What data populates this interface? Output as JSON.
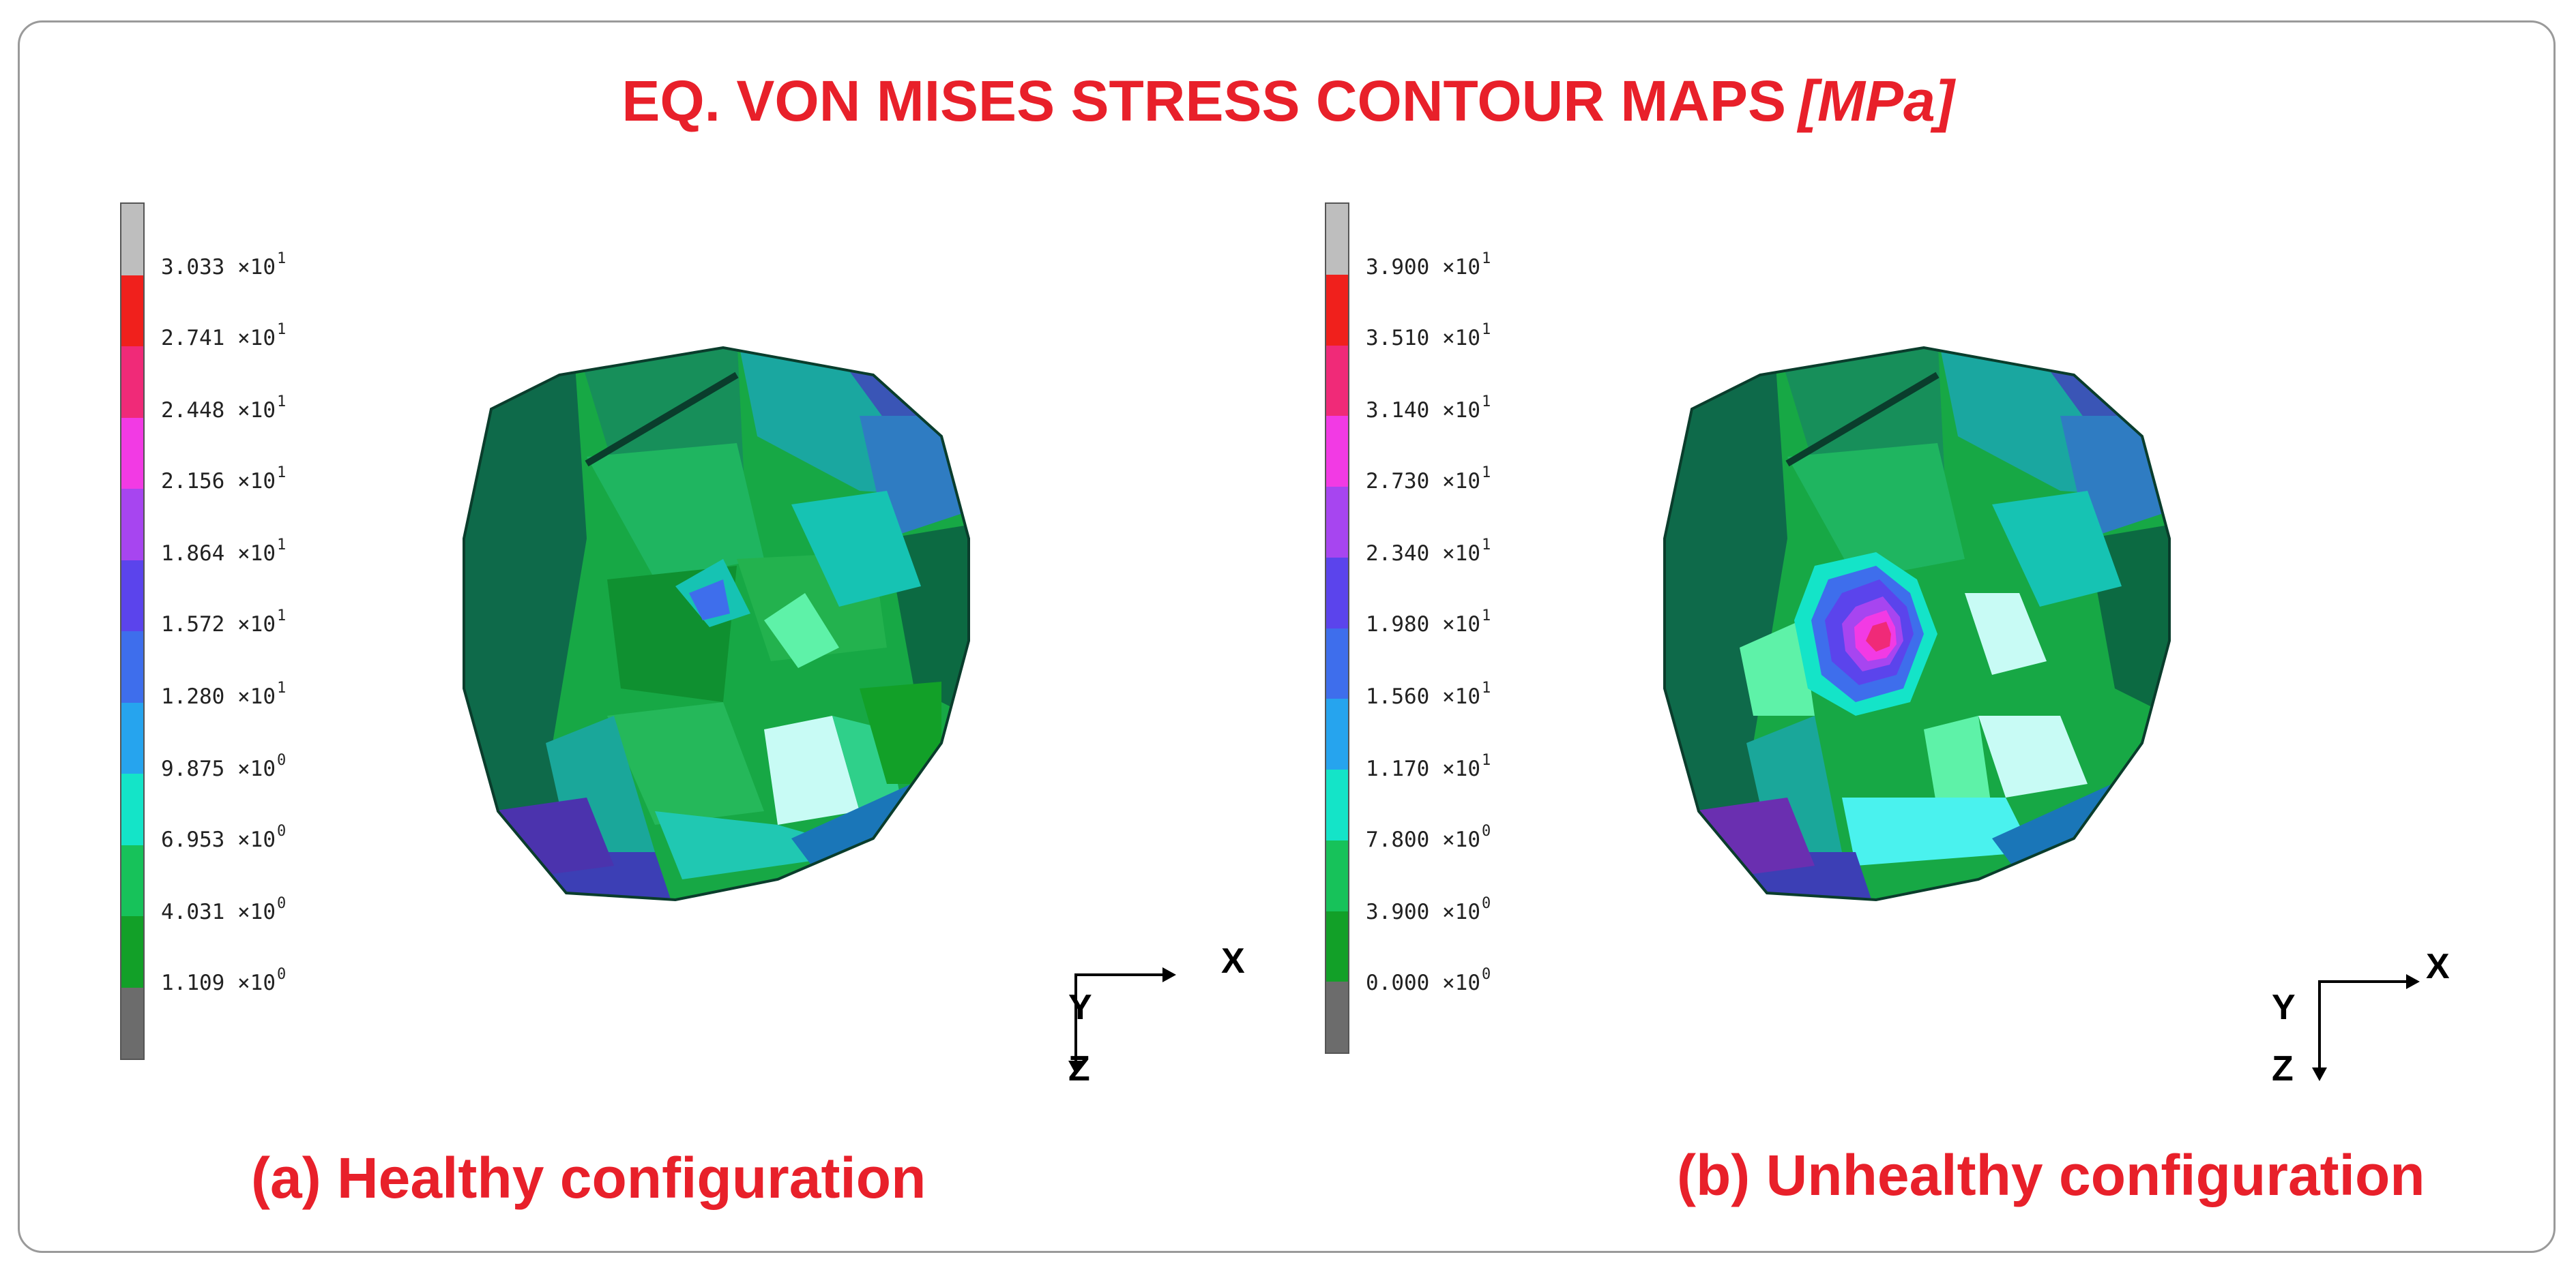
{
  "title": {
    "text": "EQ. VON MISES STRESS CONTOUR MAPS",
    "unit": "[MPa]"
  },
  "colors": {
    "accent_red": "#e8202a",
    "scale_segments": [
      "#bebebe",
      "#f0201c",
      "#f02a78",
      "#f23ae4",
      "#a745f0",
      "#5b44ec",
      "#3e6eec",
      "#26a4ee",
      "#14e4c8",
      "#17c25a",
      "#12a028",
      "#6c6c6c"
    ]
  },
  "panels": [
    {
      "caption": "(a) Healthy configuration",
      "scale_labels": [
        {
          "mantissa": "3.033",
          "exp": "1"
        },
        {
          "mantissa": "2.741",
          "exp": "1"
        },
        {
          "mantissa": "2.448",
          "exp": "1"
        },
        {
          "mantissa": "2.156",
          "exp": "1"
        },
        {
          "mantissa": "1.864",
          "exp": "1"
        },
        {
          "mantissa": "1.572",
          "exp": "1"
        },
        {
          "mantissa": "1.280",
          "exp": "1"
        },
        {
          "mantissa": "9.875",
          "exp": "0"
        },
        {
          "mantissa": "6.953",
          "exp": "0"
        },
        {
          "mantissa": "4.031",
          "exp": "0"
        },
        {
          "mantissa": "1.109",
          "exp": "0"
        }
      ],
      "axes": {
        "x": "X",
        "y": "Y",
        "z": "Z"
      }
    },
    {
      "caption": "(b) Unhealthy configuration",
      "scale_labels": [
        {
          "mantissa": "3.900",
          "exp": "1"
        },
        {
          "mantissa": "3.510",
          "exp": "1"
        },
        {
          "mantissa": "3.140",
          "exp": "1"
        },
        {
          "mantissa": "2.730",
          "exp": "1"
        },
        {
          "mantissa": "2.340",
          "exp": "1"
        },
        {
          "mantissa": "1.980",
          "exp": "1"
        },
        {
          "mantissa": "1.560",
          "exp": "1"
        },
        {
          "mantissa": "1.170",
          "exp": "1"
        },
        {
          "mantissa": "7.800",
          "exp": "0"
        },
        {
          "mantissa": "3.900",
          "exp": "0"
        },
        {
          "mantissa": "0.000",
          "exp": "0"
        }
      ],
      "axes": {
        "x": "X",
        "y": "Y",
        "z": "Z"
      }
    }
  ],
  "times_symbol": "×10"
}
